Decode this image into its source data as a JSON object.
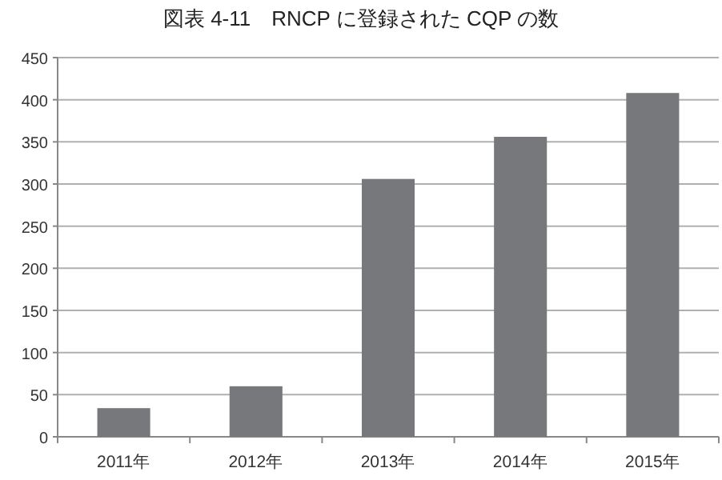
{
  "chart_data": {
    "type": "bar",
    "title": "図表 4-11　RNCP に登録された CQP の数",
    "categories": [
      "2011年",
      "2012年",
      "2013年",
      "2014年",
      "2015年"
    ],
    "values": [
      34,
      60,
      306,
      356,
      408
    ],
    "color": "#77787b",
    "ylim": [
      0,
      450
    ],
    "yticks": [
      0,
      50,
      100,
      150,
      200,
      250,
      300,
      350,
      400,
      450
    ],
    "grid": "y"
  }
}
